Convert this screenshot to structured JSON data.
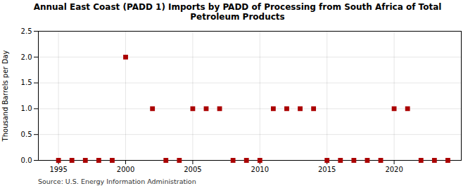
{
  "chart_data": {
    "type": "scatter",
    "title": "Annual East Coast (PADD 1) Imports by PADD of Processing from South Africa of Total\nPetroleum Products",
    "ylabel": "Thousand Barrels per Day",
    "source": "Source: U.S. Energy Information Administration",
    "x": [
      1995,
      1996,
      1997,
      1998,
      1999,
      2000,
      2002,
      2003,
      2004,
      2005,
      2006,
      2007,
      2008,
      2009,
      2010,
      2011,
      2012,
      2013,
      2014,
      2015,
      2016,
      2017,
      2018,
      2019,
      2020,
      2021,
      2022,
      2023,
      2024
    ],
    "values": [
      0.0,
      0.0,
      0.0,
      0.0,
      0.0,
      2.0,
      1.0,
      0.0,
      0.0,
      1.0,
      1.0,
      1.0,
      0.0,
      0.0,
      0.0,
      1.0,
      1.0,
      1.0,
      1.0,
      0.0,
      0.0,
      0.0,
      0.0,
      0.0,
      1.0,
      1.0,
      0.0,
      0.0,
      0.0
    ],
    "color": "#aa0000",
    "marker": "square",
    "xlim": [
      1993.5,
      2025
    ],
    "xticks": [
      1995,
      2000,
      2005,
      2010,
      2015,
      2020
    ],
    "ylim": [
      0,
      2.5
    ],
    "yticks": [
      {
        "value": 0,
        "label": "0.0"
      },
      0.5,
      {
        "value": 1,
        "label": "1.0"
      },
      1.5,
      {
        "value": 2,
        "label": "2.0"
      },
      2.5
    ],
    "grid": true
  }
}
